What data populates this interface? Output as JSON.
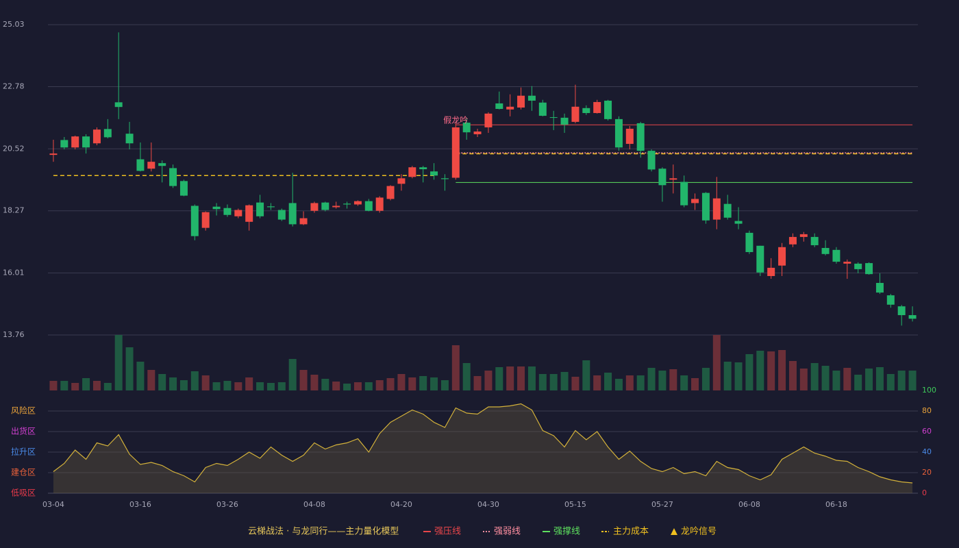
{
  "chart_data": [
    {
      "type": "candlestick",
      "categories": [
        "03-04",
        null,
        null,
        null,
        null,
        null,
        null,
        null,
        "03-16",
        null,
        null,
        null,
        null,
        null,
        null,
        null,
        "03-26",
        null,
        null,
        null,
        null,
        null,
        null,
        null,
        "04-08",
        null,
        null,
        null,
        null,
        null,
        null,
        null,
        "04-20",
        null,
        null,
        null,
        null,
        null,
        null,
        null,
        "04-30",
        null,
        null,
        null,
        null,
        null,
        null,
        null,
        "05-15",
        null,
        null,
        null,
        null,
        null,
        null,
        null,
        "05-27",
        null,
        null,
        null,
        null,
        null,
        null,
        null,
        "06-08",
        null,
        null,
        null,
        null,
        null,
        null,
        null,
        "06-18",
        null,
        null,
        null,
        null,
        null,
        null,
        null
      ],
      "open": [
        20.3,
        20.84,
        20.57,
        20.97,
        20.72,
        21.24,
        22.21,
        21.07,
        20.14,
        19.8,
        20.0,
        19.82,
        19.35,
        18.45,
        17.65,
        18.42,
        18.37,
        18.07,
        17.87,
        18.57,
        18.43,
        18.3,
        18.55,
        17.78,
        18.27,
        18.57,
        18.4,
        18.53,
        18.5,
        18.62,
        18.27,
        18.7,
        19.25,
        19.5,
        19.85,
        19.7,
        19.45,
        19.47,
        21.47,
        21.05,
        21.3,
        22.17,
        21.95,
        22.02,
        22.45,
        22.2,
        21.67,
        21.65,
        21.5,
        22.0,
        21.82,
        22.27,
        21.6,
        20.7,
        21.45,
        20.45,
        19.8,
        19.4,
        19.32,
        18.55,
        18.92,
        17.95,
        18.52,
        17.9,
        17.47,
        17.0,
        15.9,
        16.28,
        17.05,
        17.32,
        17.32,
        16.92,
        16.85,
        16.35,
        16.35,
        16.37,
        15.65,
        15.2,
        14.8,
        14.48
      ],
      "close": [
        20.35,
        20.57,
        20.97,
        20.57,
        21.22,
        20.94,
        22.04,
        20.72,
        19.72,
        20.05,
        19.9,
        19.17,
        18.82,
        17.35,
        18.22,
        18.33,
        18.12,
        18.3,
        18.47,
        18.07,
        18.4,
        17.95,
        17.78,
        18.0,
        18.55,
        18.3,
        18.45,
        18.5,
        18.62,
        18.27,
        18.75,
        19.17,
        19.45,
        19.85,
        19.78,
        19.55,
        19.42,
        21.3,
        21.12,
        21.15,
        21.8,
        21.97,
        22.05,
        22.45,
        22.27,
        21.72,
        21.65,
        21.4,
        22.05,
        21.82,
        22.22,
        21.6,
        20.57,
        21.25,
        20.45,
        19.77,
        19.2,
        19.45,
        18.47,
        18.7,
        17.92,
        18.72,
        18.02,
        17.8,
        16.77,
        16.03,
        16.2,
        16.95,
        17.32,
        17.42,
        17.02,
        16.7,
        16.42,
        16.42,
        16.15,
        15.97,
        15.3,
        14.86,
        14.48,
        14.35
      ],
      "high": [
        20.85,
        20.95,
        21.0,
        21.05,
        21.3,
        21.6,
        24.75,
        21.5,
        20.75,
        20.75,
        20.1,
        19.95,
        19.4,
        18.5,
        18.25,
        18.55,
        18.5,
        18.35,
        18.5,
        18.85,
        18.55,
        18.35,
        19.65,
        18.25,
        18.6,
        18.6,
        18.6,
        18.6,
        18.65,
        18.7,
        18.8,
        19.2,
        19.6,
        19.9,
        19.9,
        20.0,
        19.6,
        21.45,
        21.65,
        21.25,
        21.85,
        22.6,
        22.5,
        22.75,
        22.8,
        22.3,
        21.9,
        21.8,
        22.85,
        22.1,
        22.3,
        22.3,
        21.7,
        21.35,
        21.5,
        20.5,
        19.85,
        19.95,
        19.55,
        18.9,
        18.95,
        19.5,
        18.85,
        18.4,
        17.55,
        17.0,
        16.55,
        17.1,
        17.45,
        17.5,
        17.45,
        17.2,
        16.95,
        16.5,
        16.4,
        16.4,
        16.0,
        15.25,
        14.85,
        14.8
      ],
      "low": [
        20.05,
        20.5,
        20.5,
        20.35,
        20.65,
        20.9,
        21.6,
        20.5,
        19.7,
        19.7,
        19.3,
        19.1,
        18.8,
        17.2,
        17.55,
        18.1,
        18.05,
        18.0,
        17.55,
        18.0,
        18.3,
        17.9,
        17.7,
        17.75,
        18.2,
        18.25,
        18.35,
        18.35,
        18.45,
        18.25,
        18.2,
        18.65,
        19.0,
        19.45,
        19.3,
        19.4,
        19.0,
        19.4,
        20.85,
        20.95,
        21.1,
        21.95,
        21.7,
        21.95,
        21.9,
        21.7,
        21.2,
        21.1,
        21.45,
        21.75,
        21.8,
        21.55,
        20.45,
        20.5,
        20.2,
        19.7,
        18.6,
        18.9,
        18.4,
        18.3,
        17.8,
        17.6,
        17.95,
        17.6,
        16.7,
        15.9,
        15.8,
        15.9,
        16.95,
        17.15,
        16.95,
        16.65,
        16.35,
        15.8,
        16.0,
        15.95,
        15.25,
        14.75,
        14.1,
        14.25
      ],
      "up_color": "#ef4a44",
      "down_color": "#22b56b",
      "ylim": [
        13.76,
        25.03
      ],
      "yticks": [
        13.76,
        16.01,
        18.27,
        20.52,
        22.78,
        25.03
      ],
      "grid": true,
      "lines": [
        {
          "name": "强压线",
          "color": "#e8464a",
          "style": "solid",
          "values": [
            null,
            null,
            null,
            null,
            null,
            null,
            null,
            null,
            null,
            null,
            null,
            null,
            null,
            null,
            null,
            null,
            null,
            null,
            null,
            null,
            null,
            null,
            null,
            null,
            null,
            null,
            null,
            null,
            null,
            null,
            null,
            null,
            null,
            null,
            null,
            null,
            null,
            21.39,
            21.39,
            21.39,
            21.39,
            21.39,
            21.39,
            21.39,
            21.39,
            21.39,
            21.39,
            21.39,
            21.39,
            21.39,
            21.39,
            21.39,
            21.39,
            21.39,
            21.39,
            21.39,
            21.39,
            21.39,
            21.39,
            21.39,
            21.39,
            21.39,
            21.39,
            21.39,
            21.39,
            21.39,
            21.39,
            21.39,
            21.39,
            21.39,
            21.39,
            21.39,
            21.39,
            21.39,
            21.39,
            21.39,
            21.39,
            21.39,
            21.39,
            21.39
          ]
        },
        {
          "name": "强弱线",
          "color": "#ff8fa0",
          "style": "dotted",
          "values": [
            null,
            null,
            null,
            null,
            null,
            null,
            null,
            null,
            null,
            null,
            null,
            null,
            null,
            null,
            null,
            null,
            null,
            null,
            null,
            null,
            null,
            null,
            null,
            null,
            null,
            null,
            null,
            null,
            null,
            null,
            null,
            null,
            null,
            null,
            null,
            null,
            null,
            20.37,
            20.37,
            20.37,
            20.37,
            20.37,
            20.37,
            20.37,
            20.37,
            20.37,
            20.37,
            20.37,
            20.37,
            20.37,
            20.37,
            20.37,
            20.37,
            20.37,
            20.37,
            20.37,
            20.37,
            20.37,
            20.37,
            20.37,
            20.37,
            20.37,
            20.37,
            20.37,
            20.37,
            20.37,
            20.37,
            20.37,
            20.37,
            20.37,
            20.37,
            20.37,
            20.37,
            20.37,
            20.37,
            20.37,
            20.37,
            20.37,
            20.37,
            20.37
          ]
        },
        {
          "name": "强撑线",
          "color": "#5ee05e",
          "style": "solid",
          "values": [
            null,
            null,
            null,
            null,
            null,
            null,
            null,
            null,
            null,
            null,
            null,
            null,
            null,
            null,
            null,
            null,
            null,
            null,
            null,
            null,
            null,
            null,
            null,
            null,
            null,
            null,
            null,
            null,
            null,
            null,
            null,
            null,
            null,
            null,
            null,
            null,
            null,
            19.3,
            19.3,
            19.3,
            19.3,
            19.3,
            19.3,
            19.3,
            19.3,
            19.3,
            19.3,
            19.3,
            19.3,
            19.3,
            19.3,
            19.3,
            19.3,
            19.3,
            19.3,
            19.3,
            19.3,
            19.3,
            19.3,
            19.3,
            19.3,
            19.3,
            19.3,
            19.3,
            19.3,
            19.3,
            19.3,
            19.3,
            19.3,
            19.3,
            19.3,
            19.3,
            19.3,
            19.3,
            19.3,
            19.3,
            19.3,
            19.3,
            19.3,
            19.3
          ]
        },
        {
          "name": "主力成本",
          "color": "#f0c020",
          "style": "dashed",
          "values": [
            19.55,
            19.55,
            19.55,
            19.55,
            19.55,
            19.55,
            19.55,
            19.55,
            19.55,
            19.55,
            19.55,
            19.55,
            19.55,
            19.55,
            19.55,
            19.55,
            19.55,
            19.55,
            19.55,
            19.55,
            19.55,
            19.55,
            19.55,
            19.55,
            19.55,
            19.55,
            19.55,
            19.55,
            19.55,
            19.55,
            19.55,
            19.55,
            19.55,
            19.55,
            19.55,
            19.55,
            null,
            20.34,
            20.34,
            20.34,
            20.34,
            20.34,
            20.34,
            20.34,
            20.34,
            20.34,
            20.34,
            20.34,
            20.34,
            20.34,
            20.34,
            20.34,
            20.34,
            20.34,
            20.34,
            20.34,
            20.34,
            20.34,
            20.34,
            20.34,
            20.34,
            20.34,
            20.34,
            20.34,
            20.34,
            20.34,
            20.34,
            20.34,
            20.34,
            20.34,
            20.34,
            20.34,
            20.34,
            20.34,
            20.34,
            20.34,
            20.34,
            20.34,
            20.34,
            20.34
          ]
        }
      ],
      "annotations": [
        {
          "text": "假龙吟",
          "at": 37,
          "value": 21.55,
          "color": "#ff6b8a"
        }
      ],
      "legend_title": "云梯战法 · 与龙同行——主力量化模型",
      "signal_name": "龙吟信号"
    },
    {
      "type": "bar",
      "values": [
        14,
        14,
        11,
        18,
        14,
        11,
        81,
        63,
        42,
        30,
        24,
        19,
        15,
        28,
        22,
        12,
        14,
        12,
        19,
        12,
        11,
        12,
        46,
        30,
        23,
        17,
        13,
        10,
        12,
        12,
        15,
        18,
        24,
        19,
        21,
        19,
        15,
        66,
        40,
        21,
        29,
        34,
        35,
        35,
        35,
        24,
        24,
        27,
        20,
        44,
        22,
        26,
        17,
        22,
        22,
        33,
        29,
        31,
        22,
        18,
        33,
        81,
        42,
        41,
        53,
        58,
        57,
        59,
        43,
        32,
        40,
        36,
        29,
        33,
        23,
        32,
        34,
        24,
        29,
        29
      ],
      "up_color": "#6b2f38",
      "down_color": "#1f5a42",
      "ylim": [
        0,
        81
      ]
    },
    {
      "type": "line",
      "values": [
        21,
        29,
        42,
        33,
        49,
        46,
        57,
        38,
        28,
        30,
        27,
        21,
        17,
        11,
        25,
        29,
        27,
        33,
        40,
        34,
        45,
        37,
        31,
        37,
        49,
        43,
        47,
        49,
        53,
        40,
        58,
        69,
        75,
        81,
        77,
        69,
        64,
        83,
        78,
        77,
        84,
        84,
        85,
        87,
        81,
        61,
        56,
        45,
        61,
        52,
        60,
        45,
        33,
        41,
        31,
        24,
        21,
        25,
        19,
        21,
        17,
        31,
        25,
        23,
        17,
        13,
        18,
        33,
        39,
        45,
        39,
        36,
        32,
        31,
        25,
        21,
        16,
        13,
        11,
        10
      ],
      "color": "#d4b23a",
      "ylim": [
        0,
        100
      ],
      "yticks": [
        0,
        20,
        40,
        60,
        80,
        100
      ],
      "ytick_colors": [
        "#e83a4a",
        "#e8603a",
        "#4a8ae8",
        "#d040d0",
        "#e8a23a",
        "#3ec95a"
      ],
      "zones": [
        {
          "label": "风险区",
          "value": 80,
          "color": "#e8a23a"
        },
        {
          "label": "出货区",
          "value": 60,
          "color": "#d040d0"
        },
        {
          "label": "拉升区",
          "value": 40,
          "color": "#4a8ae8"
        },
        {
          "label": "建仓区",
          "value": 20,
          "color": "#e8603a"
        },
        {
          "label": "低吸区",
          "value": 0,
          "color": "#e83a4a"
        }
      ]
    }
  ]
}
